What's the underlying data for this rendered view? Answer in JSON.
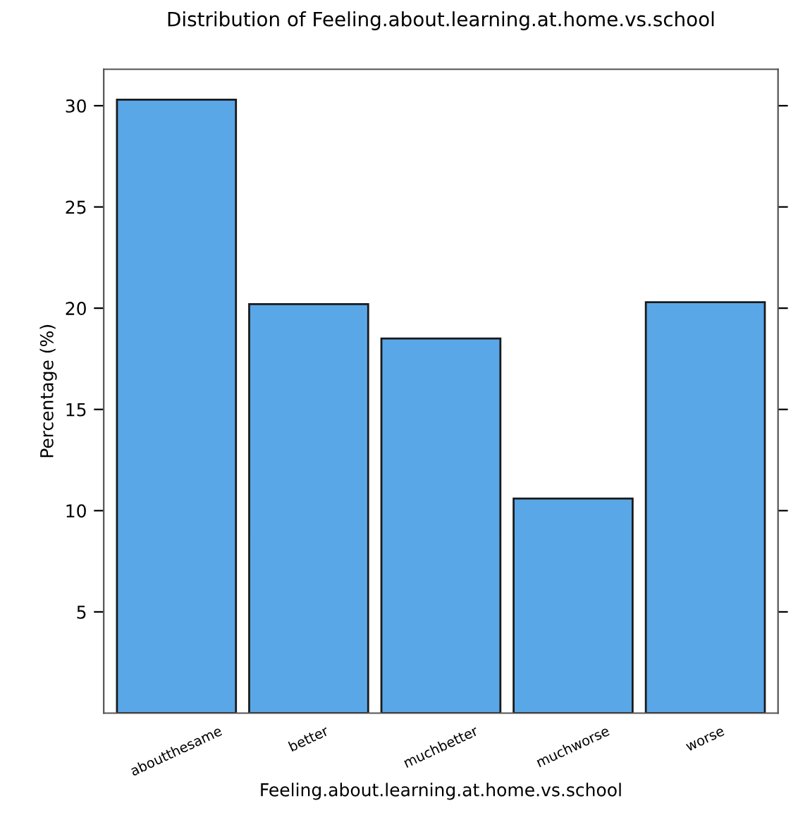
{
  "chart_data": {
    "type": "bar",
    "title": "Distribution of Feeling.about.learning.at.home.vs.school",
    "xlabel": "Feeling.about.learning.at.home.vs.school",
    "ylabel": "Percentage (%)",
    "categories": [
      "aboutthesame",
      "better",
      "muchbetter",
      "muchworse",
      "worse"
    ],
    "values": [
      30.3,
      20.2,
      18.5,
      10.6,
      20.3
    ],
    "color": "#5aa7e8",
    "ylim": [
      0,
      31.8
    ],
    "yticks": [
      5,
      10,
      15,
      20,
      25,
      30
    ],
    "grid": false
  }
}
